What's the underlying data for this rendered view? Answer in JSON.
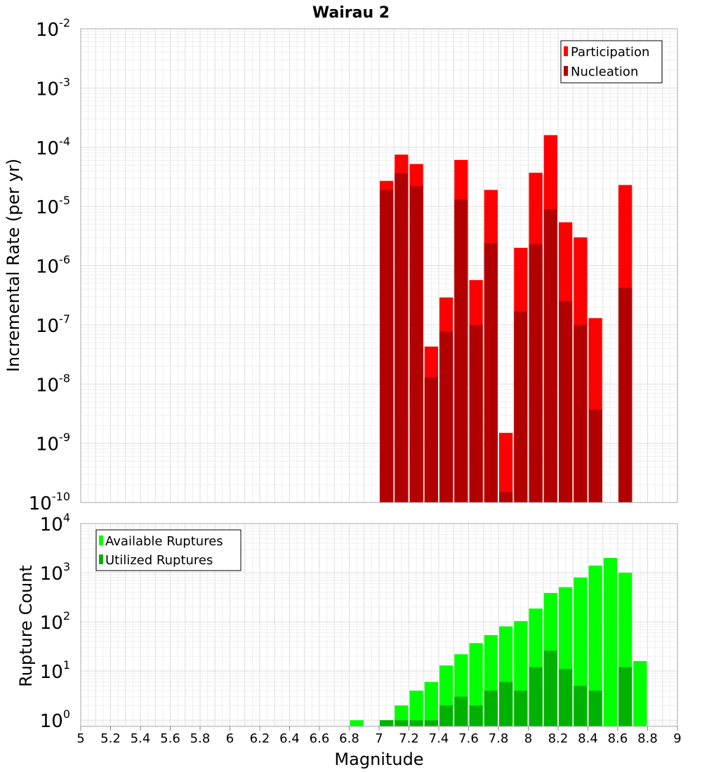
{
  "chart_data": [
    {
      "type": "bar",
      "title": "Wairau 2",
      "ylabel": "Incremental Rate (per yr)",
      "xlabel": "",
      "xlim": [
        5,
        9
      ],
      "ylim": [
        1e-10,
        0.01
      ],
      "yscale": "log",
      "grid": true,
      "legend_position": "top-right",
      "bar_width": 0.09,
      "ytick_exponents": [
        "-2",
        "-3",
        "-4",
        "-5",
        "-6",
        "-7",
        "-8",
        "-9",
        "-10"
      ],
      "ytick_base": "10",
      "series": [
        {
          "name": "Participation",
          "color": "#ff0000",
          "x": [
            7.05,
            7.15,
            7.25,
            7.35,
            7.45,
            7.55,
            7.65,
            7.75,
            7.85,
            7.95,
            8.05,
            8.15,
            8.25,
            8.35,
            8.45,
            8.65
          ],
          "values": [
            2.7e-05,
            7.5e-05,
            5.2e-05,
            4.3e-08,
            2.9e-07,
            6.1e-05,
            5.7e-07,
            1.9e-05,
            1.5e-09,
            2e-06,
            3.7e-05,
            0.00016,
            5.4e-06,
            3e-06,
            1.3e-07,
            2.3e-05
          ]
        },
        {
          "name": "Nucleation",
          "color": "#b20000",
          "x": [
            7.05,
            7.15,
            7.25,
            7.35,
            7.45,
            7.55,
            7.65,
            7.75,
            7.85,
            7.95,
            8.05,
            8.15,
            8.25,
            8.35,
            8.45,
            8.65
          ],
          "values": [
            1.9e-05,
            3.6e-05,
            2.2e-05,
            1.3e-08,
            7.7e-08,
            1.3e-05,
            1e-07,
            2.4e-06,
            1.5e-10,
            1.7e-07,
            2.3e-06,
            9e-06,
            2.5e-07,
            1e-07,
            3.7e-09,
            4.2e-07
          ]
        }
      ]
    },
    {
      "type": "bar",
      "title": "",
      "ylabel": "Rupture Count",
      "xlabel": "Magnitude",
      "xlim": [
        5,
        9
      ],
      "ylim": [
        0.75,
        10000.0
      ],
      "yscale": "log",
      "grid": true,
      "legend_position": "top-left",
      "bar_width": 0.09,
      "ytick_values": [
        1,
        10,
        100,
        1000,
        10000
      ],
      "ytick_exponents": [
        "0",
        "1",
        "2",
        "3",
        "4"
      ],
      "ytick_base": "10",
      "xticks": [
        "5",
        "5.2",
        "5.4",
        "5.6",
        "5.8",
        "6",
        "6.2",
        "6.4",
        "6.6",
        "6.8",
        "7",
        "7.2",
        "7.4",
        "7.6",
        "7.8",
        "8",
        "8.2",
        "8.4",
        "8.6",
        "8.8",
        "9"
      ],
      "series": [
        {
          "name": "Available Ruptures",
          "color": "#00ff00",
          "x": [
            6.85,
            7.05,
            7.15,
            7.25,
            7.35,
            7.45,
            7.55,
            7.65,
            7.75,
            7.85,
            7.95,
            8.05,
            8.15,
            8.25,
            8.35,
            8.45,
            8.55,
            8.65,
            8.75
          ],
          "values": [
            1,
            1,
            2,
            4,
            6,
            13,
            22,
            37,
            54,
            81,
            104,
            187,
            387,
            510,
            799,
            1400,
            2002,
            1001,
            16
          ]
        },
        {
          "name": "Utilized Ruptures",
          "color": "#00b200",
          "x": [
            7.05,
            7.15,
            7.25,
            7.35,
            7.45,
            7.55,
            7.65,
            7.75,
            7.85,
            7.95,
            8.05,
            8.15,
            8.25,
            8.35,
            8.45,
            8.65
          ],
          "values": [
            1,
            1,
            1,
            1,
            2,
            3,
            2,
            4,
            6,
            4,
            12,
            26,
            11,
            5,
            4,
            12
          ]
        }
      ]
    }
  ]
}
